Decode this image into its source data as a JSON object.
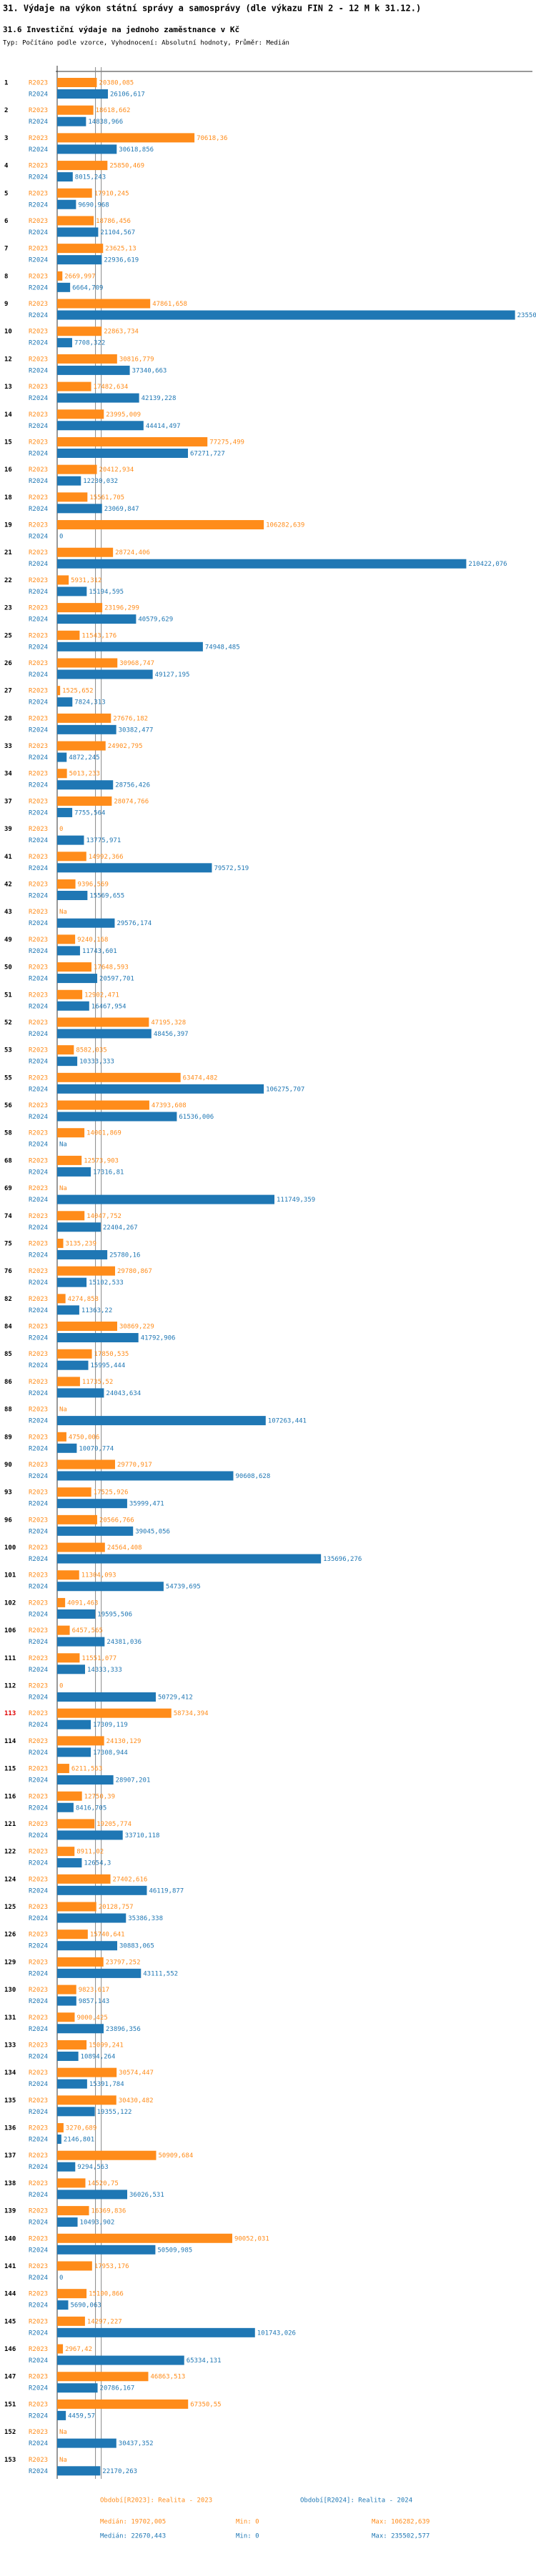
{
  "chart_data": {
    "type": "bar",
    "orientation": "horizontal",
    "title": "31. Výdaje na výkon státní správy a samosprávy (dle výkazu FIN 2 - 12 M k 31.12.)",
    "subtitle": "31.6 Investiční výdaje na jednoho zaměstnance v Kč",
    "note": "Typ: Počítáno podle vzorce, Vyhodnocení: Absolutní hodnoty, Průměr: Medián",
    "categories": [
      "1",
      "2",
      "3",
      "4",
      "5",
      "6",
      "7",
      "8",
      "9",
      "10",
      "12",
      "13",
      "14",
      "15",
      "16",
      "18",
      "19",
      "21",
      "22",
      "23",
      "25",
      "26",
      "27",
      "28",
      "33",
      "34",
      "37",
      "39",
      "41",
      "42",
      "43",
      "49",
      "50",
      "51",
      "52",
      "53",
      "55",
      "56",
      "58",
      "68",
      "69",
      "74",
      "75",
      "76",
      "82",
      "84",
      "85",
      "86",
      "88",
      "89",
      "90",
      "93",
      "96",
      "100",
      "101",
      "102",
      "106",
      "111",
      "112",
      "113",
      "114",
      "115",
      "116",
      "121",
      "122",
      "124",
      "125",
      "126",
      "129",
      "130",
      "131",
      "133",
      "134",
      "135",
      "136",
      "137",
      "138",
      "139",
      "140",
      "141",
      "144",
      "145",
      "146",
      "147",
      "151",
      "152",
      "153"
    ],
    "highlight_index": 59,
    "highlight_color": "#e00000",
    "xlim": [
      0,
      236000
    ],
    "series": [
      {
        "name": "R2023",
        "color": "#ff8c1a",
        "legend": "Období[R2023]: Realita - 2023",
        "values": [
          20380.085,
          18618.662,
          70618.36,
          25850.469,
          17910.245,
          18786.456,
          23625.13,
          2669.997,
          47861.658,
          22863.734,
          30816.779,
          17482.634,
          23995.009,
          77275.499,
          20412.934,
          15561.705,
          106282.639,
          28724.406,
          5931.312,
          23196.299,
          11543.176,
          30968.747,
          1525.652,
          27676.182,
          24902.795,
          5013.233,
          28074.766,
          0,
          14992.366,
          9396.569,
          null,
          9240.168,
          17648.593,
          12902.471,
          47195.328,
          8582.035,
          63474.482,
          47393.608,
          14001.869,
          12573.903,
          null,
          14047.752,
          3135.239,
          29780.867,
          4274.858,
          30869.229,
          17850.535,
          11735.52,
          null,
          4750.006,
          29770.917,
          17525.926,
          20566.766,
          24564.408,
          11304.093,
          4091.463,
          6457.565,
          11551.077,
          0,
          58734.394,
          24130.129,
          6211.563,
          12750.39,
          19205.774,
          8911.02,
          27402.616,
          20128.757,
          15740.641,
          23797.252,
          9823.617,
          9000.425,
          15099.241,
          30574.447,
          30430.482,
          3270.689,
          50909.684,
          14520.75,
          16369.836,
          90052.031,
          17953.176,
          15100.866,
          14297.227,
          2967.42,
          46863.513,
          67350.55,
          null,
          null
        ],
        "value_labels": [
          "20380,085",
          "18618,662",
          "70618,36",
          "25850,469",
          "17910,245",
          "18786,456",
          "23625,13",
          "2669,997",
          "47861,658",
          "22863,734",
          "30816,779",
          "17482,634",
          "23995,009",
          "77275,499",
          "20412,934",
          "15561,705",
          "106282,639",
          "28724,406",
          "5931,312",
          "23196,299",
          "11543,176",
          "30968,747",
          "1525,652",
          "27676,182",
          "24902,795",
          "5013,233",
          "28074,766",
          "0",
          "14992,366",
          "9396,569",
          "Na",
          "9240,168",
          "17648,593",
          "12902,471",
          "47195,328",
          "8582,035",
          "63474,482",
          "47393,608",
          "14001,869",
          "12573,903",
          "Na",
          "14047,752",
          "3135,239",
          "29780,867",
          "4274,858",
          "30869,229",
          "17850,535",
          "11735,52",
          "Na",
          "4750,006",
          "29770,917",
          "17525,926",
          "20566,766",
          "24564,408",
          "11304,093",
          "4091,463",
          "6457,565",
          "11551,077",
          "0",
          "58734,394",
          "24130,129",
          "6211,563",
          "12750,39",
          "19205,774",
          "8911,02",
          "27402,616",
          "20128,757",
          "15740,641",
          "23797,252",
          "9823,617",
          "9000,425",
          "15099,241",
          "30574,447",
          "30430,482",
          "3270,689",
          "50909,684",
          "14520,75",
          "16369,836",
          "90052,031",
          "17953,176",
          "15100,866",
          "14297,227",
          "2967,42",
          "46863,513",
          "67350,55",
          "Na",
          "Na"
        ],
        "median": {
          "value": 19702.005,
          "label": "Medián: 19702,005"
        },
        "min": {
          "value": 0,
          "label": "Min: 0"
        },
        "max": {
          "value": 106282.639,
          "label": "Max: 106282,639"
        }
      },
      {
        "name": "R2024",
        "color": "#1f77b4",
        "legend": "Období[R2024]: Realita - 2024",
        "values": [
          26106.617,
          14838.966,
          30618.856,
          8015.243,
          9690.968,
          21104.567,
          22936.619,
          6664.709,
          235502.577,
          7708.322,
          37340.663,
          42139.228,
          44414.497,
          67271.727,
          12230.032,
          23069.847,
          0,
          210422.076,
          15194.595,
          40579.629,
          74948.485,
          49127.195,
          7824.313,
          30382.477,
          4872.245,
          28756.426,
          7755.564,
          13775.971,
          79572.519,
          15569.655,
          29576.174,
          11743.601,
          20597.701,
          16467.954,
          48456.397,
          10333.333,
          106275.707,
          61536.006,
          null,
          17316.81,
          111749.359,
          22404.267,
          25780.16,
          15102.533,
          11363.22,
          41792.906,
          15995.444,
          24043.634,
          107263.441,
          10070.774,
          90608.628,
          35999.471,
          39045.056,
          135696.276,
          54739.695,
          19595.506,
          24381.036,
          14333.333,
          50729.412,
          17309.119,
          17308.944,
          28907.201,
          8416.705,
          33710.118,
          12654.3,
          46119.877,
          35386.338,
          30883.065,
          43111.552,
          9857.143,
          23896.356,
          10894.264,
          15391.784,
          19355.122,
          2146.801,
          9294.563,
          36026.531,
          10493.902,
          50509.985,
          0,
          5690.063,
          101743.026,
          65334.131,
          20786.167,
          4459.57,
          30437.352,
          22170.263
        ],
        "value_labels": [
          "26106,617",
          "14838,966",
          "30618,856",
          "8015,243",
          "9690,968",
          "21104,567",
          "22936,619",
          "6664,709",
          "235502,577",
          "7708,322",
          "37340,663",
          "42139,228",
          "44414,497",
          "67271,727",
          "12230,032",
          "23069,847",
          "0",
          "210422,076",
          "15194,595",
          "40579,629",
          "74948,485",
          "49127,195",
          "7824,313",
          "30382,477",
          "4872,245",
          "28756,426",
          "7755,564",
          "13775,971",
          "79572,519",
          "15569,655",
          "29576,174",
          "11743,601",
          "20597,701",
          "16467,954",
          "48456,397",
          "10333,333",
          "106275,707",
          "61536,006",
          "Na",
          "17316,81",
          "111749,359",
          "22404,267",
          "25780,16",
          "15102,533",
          "11363,22",
          "41792,906",
          "15995,444",
          "24043,634",
          "107263,441",
          "10070,774",
          "90608,628",
          "35999,471",
          "39045,056",
          "135696,276",
          "54739,695",
          "19595,506",
          "24381,036",
          "14333,333",
          "50729,412",
          "17309,119",
          "17308,944",
          "28907,201",
          "8416,705",
          "33710,118",
          "12654,3",
          "46119,877",
          "35386,338",
          "30883,065",
          "43111,552",
          "9857,143",
          "23896,356",
          "10894,264",
          "15391,784",
          "19355,122",
          "2146,801",
          "9294,563",
          "36026,531",
          "10493,902",
          "50509,985",
          "0",
          "5690,063",
          "101743,026",
          "65334,131",
          "20786,167",
          "4459,57",
          "30437,352",
          "22170,263"
        ],
        "median": {
          "value": 22670.443,
          "label": "Medián: 22670,443"
        },
        "min": {
          "value": 0,
          "label": "Min: 0"
        },
        "max": {
          "value": 235502.577,
          "label": "Max: 235502,577"
        }
      }
    ]
  }
}
